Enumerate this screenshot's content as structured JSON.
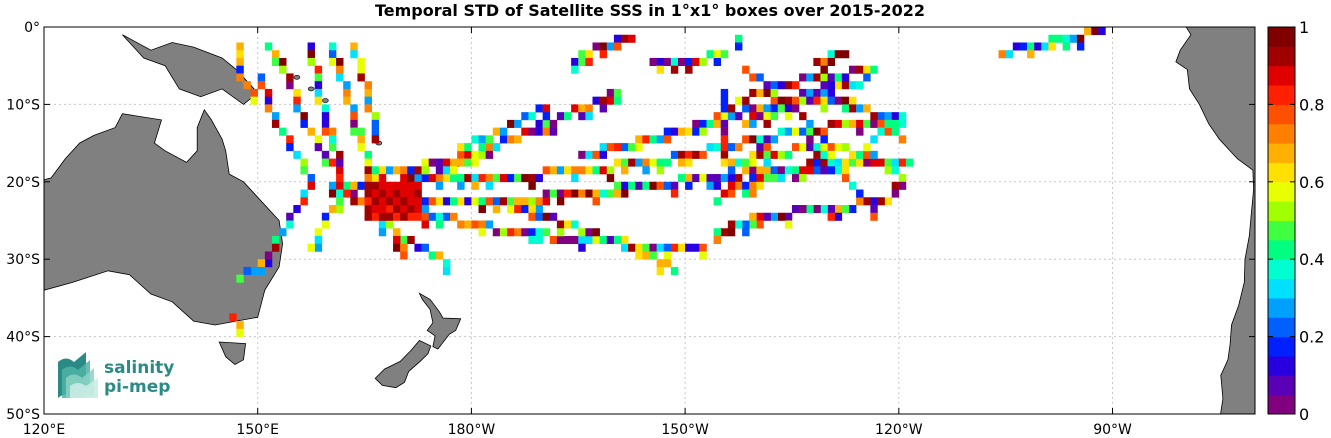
{
  "title": "Temporal STD of Satellite SSS in 1°x1° boxes over 2015-2022",
  "map": {
    "lon_range": [
      120,
      290
    ],
    "lat_range": [
      -50,
      0
    ],
    "grid": true,
    "lon_ticks": [
      {
        "lon": 120,
        "label": "120°E"
      },
      {
        "lon": 150,
        "label": "150°E"
      },
      {
        "lon": 180,
        "label": "180°W"
      },
      {
        "lon": 210,
        "label": "150°W"
      },
      {
        "lon": 240,
        "label": "120°W"
      },
      {
        "lon": 270,
        "label": "90°W"
      }
    ],
    "lat_ticks": [
      {
        "lat": 0,
        "label": "0°"
      },
      {
        "lat": -10,
        "label": "10°S"
      },
      {
        "lat": -20,
        "label": "20°S"
      },
      {
        "lat": -30,
        "label": "30°S"
      },
      {
        "lat": -40,
        "label": "40°S"
      },
      {
        "lat": -50,
        "label": "50°S"
      }
    ],
    "land_color": "#808080",
    "land_names": [
      "new-guinea",
      "australia",
      "tasmania",
      "new-zealand-north",
      "new-zealand-south",
      "south-america"
    ]
  },
  "colorbar": {
    "range": [
      0,
      1
    ],
    "ticks": [
      {
        "value": 1,
        "label": "1"
      },
      {
        "value": 0.8,
        "label": "0.8"
      },
      {
        "value": 0.6,
        "label": "0.6"
      },
      {
        "value": 0.4,
        "label": "0.4"
      },
      {
        "value": 0.2,
        "label": "0.2"
      },
      {
        "value": 0,
        "label": "0"
      }
    ],
    "colors": [
      "#800080",
      "#5a00b5",
      "#2800e0",
      "#0020ff",
      "#0060ff",
      "#00a0ff",
      "#00e0ff",
      "#00ffd0",
      "#00ff80",
      "#40ff40",
      "#a0ff00",
      "#e8ff00",
      "#ffe000",
      "#ffb000",
      "#ff8000",
      "#ff5000",
      "#ff2000",
      "#e00000",
      "#a00000",
      "#800000"
    ]
  },
  "logo": {
    "line1": "salinity",
    "line2": "pi-mep"
  },
  "chart_data": {
    "type": "heatmap",
    "title": "Temporal STD of Satellite SSS in 1°x1° boxes over 2015-2022",
    "x_label": "",
    "y_label": "",
    "xlim": [
      120,
      290
    ],
    "ylim": [
      -50,
      0
    ],
    "value_range": [
      0,
      1
    ],
    "cell_size_deg": 1,
    "tracks": [
      {
        "points": [
          [
            147,
            -2
          ],
          [
            147,
            -6
          ],
          [
            149,
            -8
          ]
        ]
      },
      {
        "points": [
          [
            150,
            -6
          ],
          [
            152,
            -12
          ],
          [
            155,
            -16
          ],
          [
            157,
            -20
          ],
          [
            153,
            -26
          ],
          [
            150,
            -30
          ],
          [
            147,
            -32
          ]
        ]
      },
      {
        "points": [
          [
            146,
            -37
          ],
          [
            147,
            -38
          ]
        ]
      },
      {
        "points": [
          [
            151,
            -2
          ],
          [
            154,
            -6
          ],
          [
            156,
            -12
          ],
          [
            159,
            -16
          ],
          [
            162,
            -20
          ],
          [
            166,
            -24
          ],
          [
            170,
            -27
          ],
          [
            176,
            -30
          ]
        ]
      },
      {
        "points": [
          [
            157,
            -2
          ],
          [
            158,
            -8
          ],
          [
            160,
            -14
          ],
          [
            161,
            -18
          ]
        ]
      },
      {
        "points": [
          [
            160,
            -2
          ],
          [
            162,
            -8
          ],
          [
            164,
            -14
          ],
          [
            166,
            -20
          ],
          [
            168,
            -24
          ],
          [
            170,
            -29
          ]
        ]
      },
      {
        "points": [
          [
            163,
            -2
          ],
          [
            165,
            -8
          ],
          [
            166,
            -14
          ]
        ]
      },
      {
        "points": [
          [
            160,
            -20
          ],
          [
            168,
            -21
          ],
          [
            176,
            -22
          ],
          [
            185,
            -22
          ],
          [
            195,
            -21
          ],
          [
            205,
            -20
          ],
          [
            213,
            -19
          ],
          [
            222,
            -18
          ],
          [
            231,
            -17
          ],
          [
            241,
            -17
          ]
        ]
      },
      {
        "points": [
          [
            160,
            -21
          ],
          [
            175,
            -24
          ],
          [
            185,
            -26
          ],
          [
            195,
            -27
          ],
          [
            205,
            -28
          ],
          [
            212,
            -28
          ]
        ]
      },
      {
        "points": [
          [
            165,
            -18
          ],
          [
            175,
            -19
          ],
          [
            185,
            -19
          ],
          [
            195,
            -18
          ],
          [
            205,
            -17
          ],
          [
            215,
            -15
          ],
          [
            225,
            -13
          ],
          [
            234,
            -12
          ],
          [
            240,
            -11
          ]
        ]
      },
      {
        "points": [
          [
            165,
            -19
          ],
          [
            160,
            -23
          ],
          [
            157,
            -28
          ]
        ]
      },
      {
        "points": [
          [
            170,
            -18
          ],
          [
            175,
            -17
          ],
          [
            180,
            -16
          ],
          [
            185,
            -14
          ],
          [
            190,
            -12
          ],
          [
            195,
            -10
          ],
          [
            200,
            -8
          ]
        ]
      },
      {
        "points": [
          [
            178,
            -15
          ],
          [
            184,
            -13
          ],
          [
            190,
            -10
          ]
        ]
      },
      {
        "points": [
          [
            195,
            -16
          ],
          [
            205,
            -14
          ],
          [
            212,
            -12
          ],
          [
            220,
            -10
          ],
          [
            228,
            -8
          ],
          [
            234,
            -7
          ]
        ]
      },
      {
        "points": [
          [
            182,
            -22
          ],
          [
            190,
            -24
          ],
          [
            196,
            -26
          ],
          [
            203,
            -28
          ],
          [
            208,
            -31
          ]
        ]
      },
      {
        "points": [
          [
            215,
            -17
          ],
          [
            222,
            -16
          ],
          [
            228,
            -15
          ],
          [
            236,
            -16
          ],
          [
            240,
            -19
          ],
          [
            238,
            -22
          ],
          [
            230,
            -23
          ],
          [
            220,
            -24
          ],
          [
            214,
            -26
          ]
        ]
      },
      {
        "points": [
          [
            214,
            -22
          ],
          [
            218,
            -20
          ],
          [
            224,
            -18
          ],
          [
            232,
            -18
          ],
          [
            236,
            -14
          ],
          [
            240,
            -12
          ]
        ]
      },
      {
        "points": [
          [
            215,
            -10
          ],
          [
            222,
            -7
          ],
          [
            230,
            -6
          ],
          [
            236,
            -5
          ]
        ]
      },
      {
        "points": [
          [
            218,
            -12
          ],
          [
            226,
            -9
          ],
          [
            232,
            -9
          ],
          [
            238,
            -12
          ],
          [
            240,
            -14
          ]
        ]
      },
      {
        "points": [
          [
            218,
            -5
          ],
          [
            222,
            -8
          ],
          [
            228,
            -13
          ],
          [
            232,
            -19
          ],
          [
            236,
            -23
          ]
        ]
      },
      {
        "points": [
          [
            215,
            -8
          ],
          [
            215,
            -14
          ],
          [
            216,
            -20
          ]
        ]
      },
      {
        "points": [
          [
            205,
            -4
          ],
          [
            210,
            -4
          ],
          [
            215,
            -3
          ]
        ]
      },
      {
        "points": [
          [
            194,
            -4
          ],
          [
            198,
            -2
          ],
          [
            202,
            -1
          ]
        ]
      },
      {
        "points": [
          [
            217,
            -1
          ],
          [
            217,
            -2
          ]
        ]
      },
      {
        "points": [
          [
            228,
            -4
          ],
          [
            232,
            -3
          ]
        ]
      },
      {
        "points": [
          [
            254,
            -3
          ],
          [
            258,
            -2
          ],
          [
            263,
            -1
          ],
          [
            268,
            0
          ]
        ]
      }
    ],
    "hotspot": {
      "lon_range": [
        165,
        172
      ],
      "lat_range": [
        -24,
        -20
      ],
      "value": 0.95
    }
  }
}
